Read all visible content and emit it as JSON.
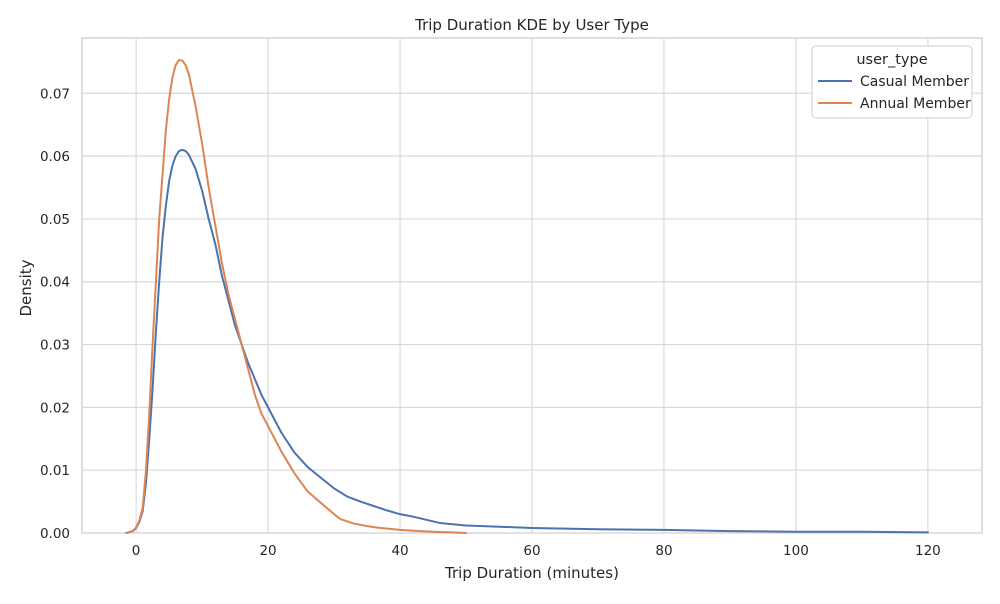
{
  "chart_data": {
    "type": "line",
    "title": "Trip Duration KDE by User Type",
    "xlabel": "Trip Duration (minutes)",
    "ylabel": "Density",
    "xlim": [
      -8.2,
      128.2
    ],
    "ylim": [
      0,
      0.0788
    ],
    "xticks": [
      0,
      20,
      40,
      60,
      80,
      100,
      120
    ],
    "yticks": [
      0.0,
      0.01,
      0.02,
      0.03,
      0.04,
      0.05,
      0.06,
      0.07
    ],
    "xtick_labels": [
      "0",
      "20",
      "40",
      "60",
      "80",
      "100",
      "120"
    ],
    "ytick_labels": [
      "0.00",
      "0.01",
      "0.02",
      "0.03",
      "0.04",
      "0.05",
      "0.06",
      "0.07"
    ],
    "grid": true,
    "legend": {
      "title": "user_type",
      "position": "top-right"
    },
    "series": [
      {
        "name": "Casual Member",
        "color": "#4c72b0",
        "points": [
          [
            -1.5,
            0.0
          ],
          [
            -0.5,
            0.0003
          ],
          [
            0.0,
            0.0008
          ],
          [
            0.5,
            0.0018
          ],
          [
            1.0,
            0.0035
          ],
          [
            1.5,
            0.008
          ],
          [
            2.0,
            0.015
          ],
          [
            2.5,
            0.023
          ],
          [
            3.0,
            0.032
          ],
          [
            3.5,
            0.04
          ],
          [
            4.0,
            0.047
          ],
          [
            4.5,
            0.052
          ],
          [
            5.0,
            0.056
          ],
          [
            5.5,
            0.0585
          ],
          [
            6.0,
            0.06
          ],
          [
            6.5,
            0.0608
          ],
          [
            7.0,
            0.061
          ],
          [
            7.5,
            0.0608
          ],
          [
            8.0,
            0.0602
          ],
          [
            9.0,
            0.058
          ],
          [
            10.0,
            0.0545
          ],
          [
            11.0,
            0.05
          ],
          [
            12.0,
            0.046
          ],
          [
            13.0,
            0.041
          ],
          [
            14.0,
            0.037
          ],
          [
            15.0,
            0.033
          ],
          [
            16.0,
            0.03
          ],
          [
            17.0,
            0.027
          ],
          [
            18.0,
            0.0245
          ],
          [
            19.0,
            0.022
          ],
          [
            20.0,
            0.02
          ],
          [
            22.0,
            0.016
          ],
          [
            24.0,
            0.0128
          ],
          [
            26.0,
            0.0105
          ],
          [
            28.0,
            0.0088
          ],
          [
            30.0,
            0.0071
          ],
          [
            32.0,
            0.0058
          ],
          [
            34.0,
            0.005
          ],
          [
            36.0,
            0.0043
          ],
          [
            38.0,
            0.0036
          ],
          [
            40.0,
            0.003
          ],
          [
            42.0,
            0.0026
          ],
          [
            44.0,
            0.0021
          ],
          [
            46.0,
            0.0016
          ],
          [
            48.0,
            0.0014
          ],
          [
            50.0,
            0.0012
          ],
          [
            55.0,
            0.001
          ],
          [
            60.0,
            0.0008
          ],
          [
            65.0,
            0.0007
          ],
          [
            70.0,
            0.0006
          ],
          [
            80.0,
            0.0005
          ],
          [
            90.0,
            0.0003
          ],
          [
            100.0,
            0.0002
          ],
          [
            110.0,
            0.0002
          ],
          [
            120.0,
            0.0001
          ]
        ]
      },
      {
        "name": "Annual Member",
        "color": "#dd8452",
        "points": [
          [
            -1.5,
            0.0
          ],
          [
            -0.5,
            0.0003
          ],
          [
            0.0,
            0.0009
          ],
          [
            0.5,
            0.002
          ],
          [
            1.0,
            0.004
          ],
          [
            1.5,
            0.01
          ],
          [
            2.0,
            0.019
          ],
          [
            2.5,
            0.03
          ],
          [
            3.0,
            0.04
          ],
          [
            3.5,
            0.05
          ],
          [
            4.0,
            0.057
          ],
          [
            4.5,
            0.064
          ],
          [
            5.0,
            0.069
          ],
          [
            5.5,
            0.0725
          ],
          [
            6.0,
            0.0745
          ],
          [
            6.5,
            0.0753
          ],
          [
            7.0,
            0.0752
          ],
          [
            7.5,
            0.0745
          ],
          [
            8.0,
            0.073
          ],
          [
            9.0,
            0.068
          ],
          [
            10.0,
            0.062
          ],
          [
            11.0,
            0.055
          ],
          [
            12.0,
            0.049
          ],
          [
            13.0,
            0.043
          ],
          [
            14.0,
            0.038
          ],
          [
            15.0,
            0.034
          ],
          [
            16.0,
            0.03
          ],
          [
            17.0,
            0.026
          ],
          [
            18.0,
            0.022
          ],
          [
            19.0,
            0.019
          ],
          [
            20.0,
            0.017
          ],
          [
            22.0,
            0.013
          ],
          [
            24.0,
            0.0095
          ],
          [
            26.0,
            0.0066
          ],
          [
            28.0,
            0.0048
          ],
          [
            30.0,
            0.003
          ],
          [
            31.0,
            0.0022
          ],
          [
            33.0,
            0.0015
          ],
          [
            35.0,
            0.0011
          ],
          [
            37.0,
            0.0008
          ],
          [
            40.0,
            0.0005
          ],
          [
            43.0,
            0.0003
          ],
          [
            45.0,
            0.0002
          ],
          [
            48.0,
            0.0001
          ],
          [
            50.0,
            0.0
          ]
        ]
      }
    ]
  }
}
